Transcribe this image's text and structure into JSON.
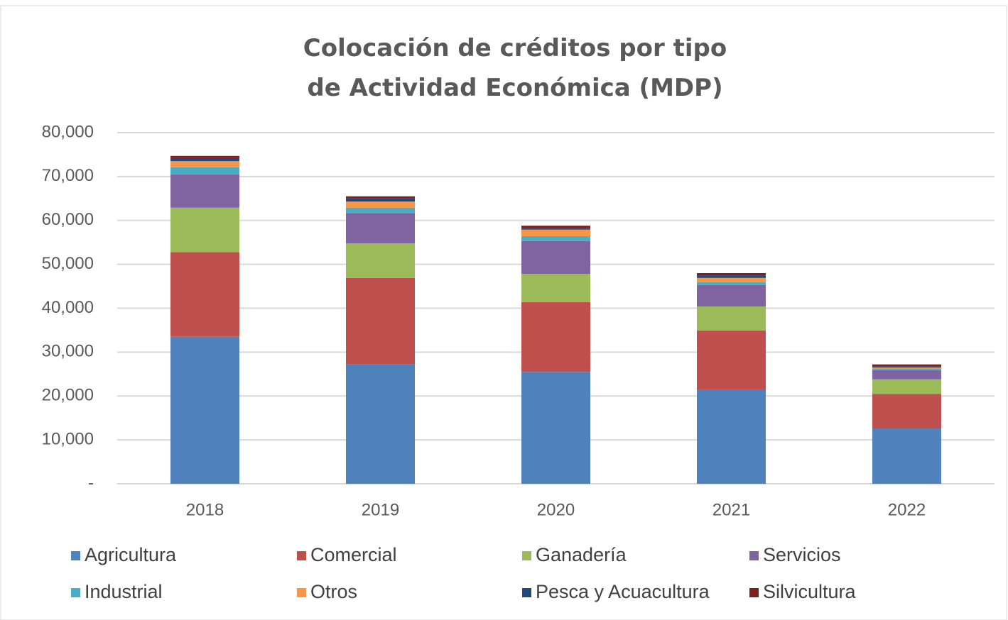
{
  "chart_data": {
    "type": "stacked_bar",
    "title": "Colocación de créditos por tipo de Actividad Económica (MDP)",
    "categories": [
      "2018",
      "2019",
      "2020",
      "2021",
      "2022"
    ],
    "series": [
      {
        "name": "Agricultura",
        "color": "#4f81bd",
        "values": [
          33500,
          27300,
          25500,
          21500,
          12600
        ]
      },
      {
        "name": "Comercial",
        "color": "#c0504d",
        "values": [
          19300,
          19600,
          15900,
          13400,
          7900
        ]
      },
      {
        "name": "Ganadería",
        "color": "#9bbb59",
        "values": [
          10100,
          7900,
          6400,
          5500,
          3300
        ]
      },
      {
        "name": "Servicios",
        "color": "#8064a2",
        "values": [
          7600,
          6900,
          7500,
          4900,
          2100
        ]
      },
      {
        "name": "Industrial",
        "color": "#4bacc6",
        "values": [
          1600,
          1200,
          1100,
          600,
          400
        ]
      },
      {
        "name": "Otros",
        "color": "#f79646",
        "values": [
          1400,
          1400,
          1500,
          1000,
          200
        ]
      },
      {
        "name": "Pesca y Acuacultura",
        "color": "#1f497d",
        "values": [
          700,
          700,
          400,
          600,
          300
        ]
      },
      {
        "name": "Silvicultura",
        "color": "#7f1e1e",
        "values": [
          500,
          500,
          500,
          500,
          400
        ]
      }
    ],
    "ylim": [
      0,
      80000
    ],
    "yticks": [
      {
        "value": 0,
        "label": "-"
      },
      {
        "value": 10000,
        "label": "10,000"
      },
      {
        "value": 20000,
        "label": "20,000"
      },
      {
        "value": 30000,
        "label": "30,000"
      },
      {
        "value": 40000,
        "label": "40,000"
      },
      {
        "value": 50000,
        "label": "50,000"
      },
      {
        "value": 60000,
        "label": "60,000"
      },
      {
        "value": 70000,
        "label": "70,000"
      },
      {
        "value": 80000,
        "label": "80,000"
      }
    ],
    "grid": true,
    "legend": "bottom"
  }
}
